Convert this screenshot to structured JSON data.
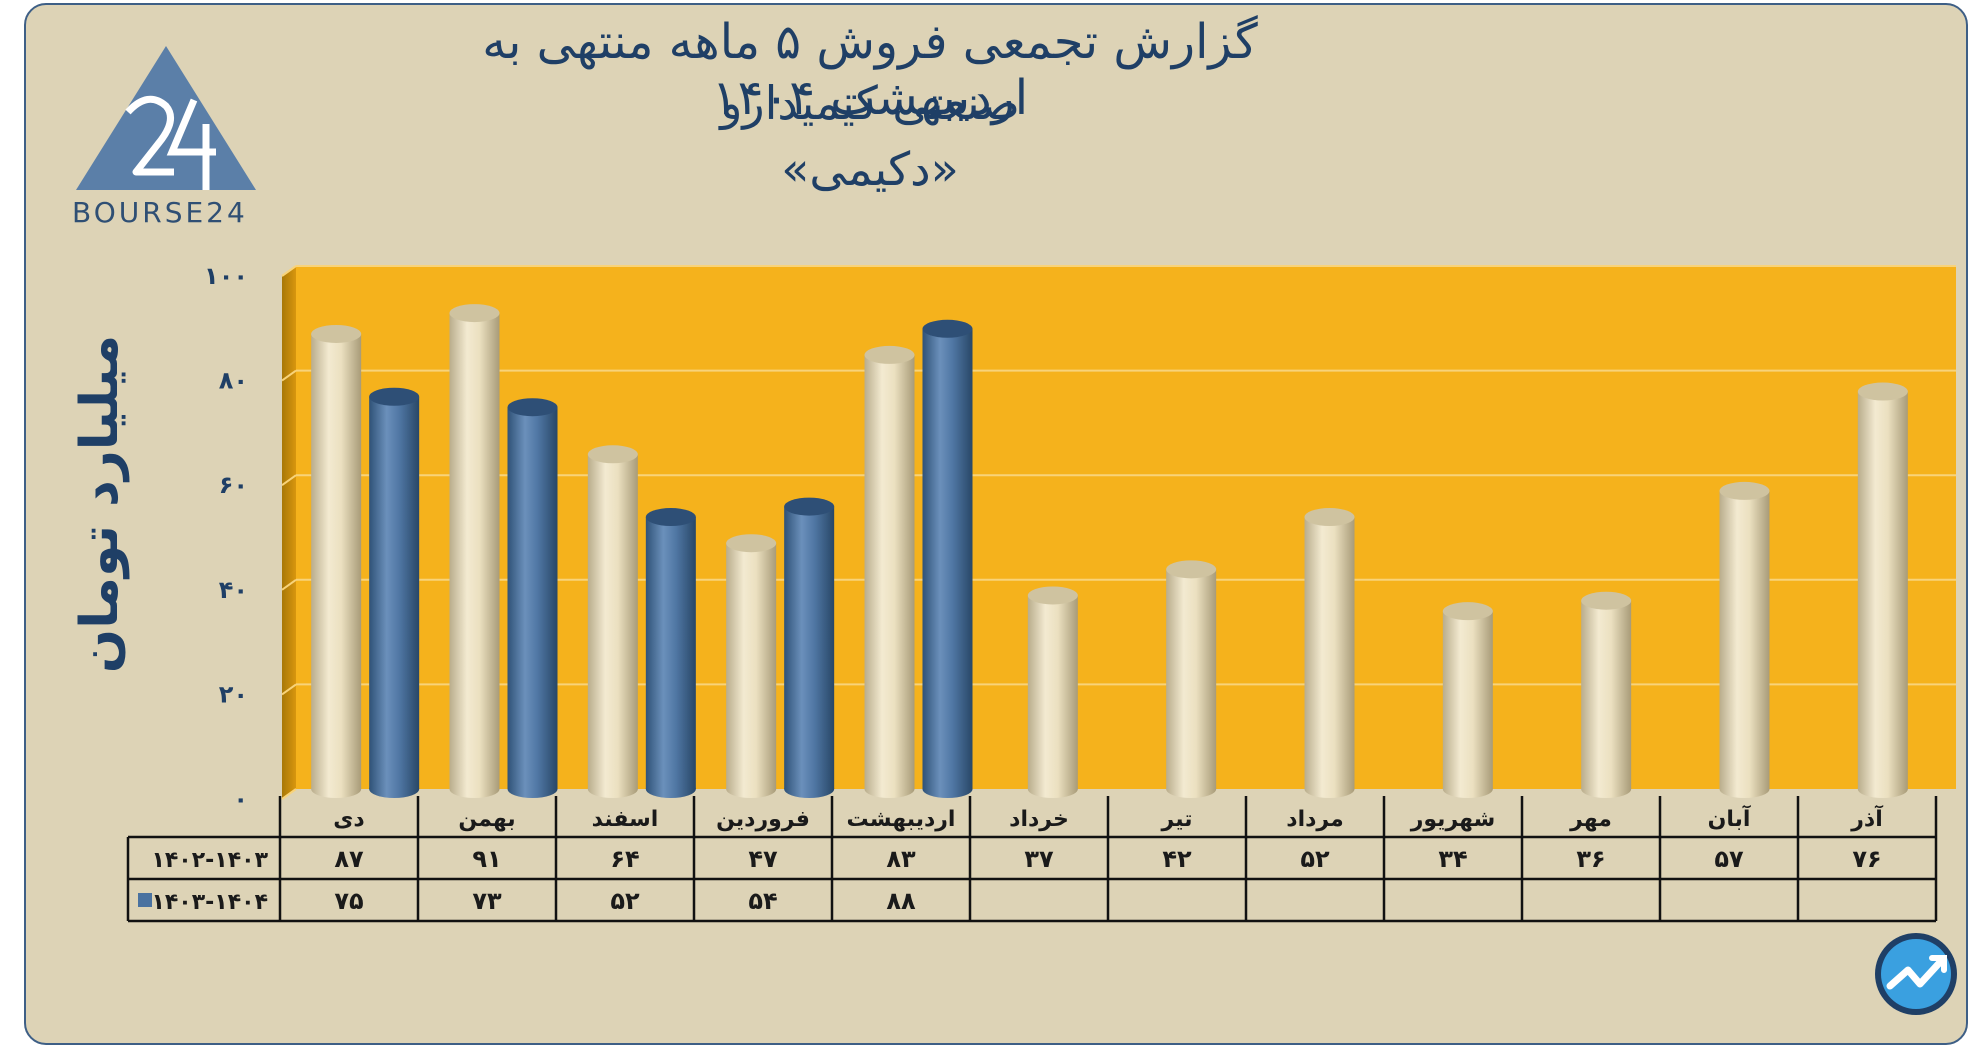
{
  "title_lines": [
    "گزارش تجمعی فروش ۵ ماهه منتهی به اردیبهشت ۱۴۰۴",
    "صنعتی کیمیدارو",
    "«دکیمی»"
  ],
  "logo_text": "BOURSE24",
  "colors": {
    "background": "#ddd3b6",
    "plot": "#f5b21c",
    "series_1": "#e8dcb8",
    "series_2": "#4a72a0",
    "text": "#1f3f66"
  },
  "chart_data": {
    "type": "bar",
    "ylabel": "میلیارد تومان",
    "ylim": [
      0,
      100
    ],
    "yticks": [
      "۰",
      "۲۰",
      "۴۰",
      "۶۰",
      "۸۰",
      "۱۰۰"
    ],
    "categories": [
      "دی",
      "بهمن",
      "اسفند",
      "فروردین",
      "اردیبهشت",
      "خرداد",
      "تیر",
      "مرداد",
      "شهریور",
      "مهر",
      "آبان",
      "آذر"
    ],
    "series": [
      {
        "name": "۱۴۰۲-۱۴۰۳",
        "values": [
          87,
          91,
          64,
          47,
          83,
          37,
          42,
          52,
          34,
          36,
          57,
          76
        ],
        "labels": [
          "۸۷",
          "۹۱",
          "۶۴",
          "۴۷",
          "۸۳",
          "۳۷",
          "۴۲",
          "۵۲",
          "۳۴",
          "۳۶",
          "۵۷",
          "۷۶"
        ]
      },
      {
        "name": "۱۴۰۳-۱۴۰۴",
        "values": [
          75,
          73,
          52,
          54,
          88,
          null,
          null,
          null,
          null,
          null,
          null,
          null
        ],
        "labels": [
          "۷۵",
          "۷۳",
          "۵۲",
          "۵۴",
          "۸۸",
          "",
          "",
          "",
          "",
          "",
          "",
          ""
        ]
      }
    ],
    "grid": true,
    "legend": "data-table"
  }
}
